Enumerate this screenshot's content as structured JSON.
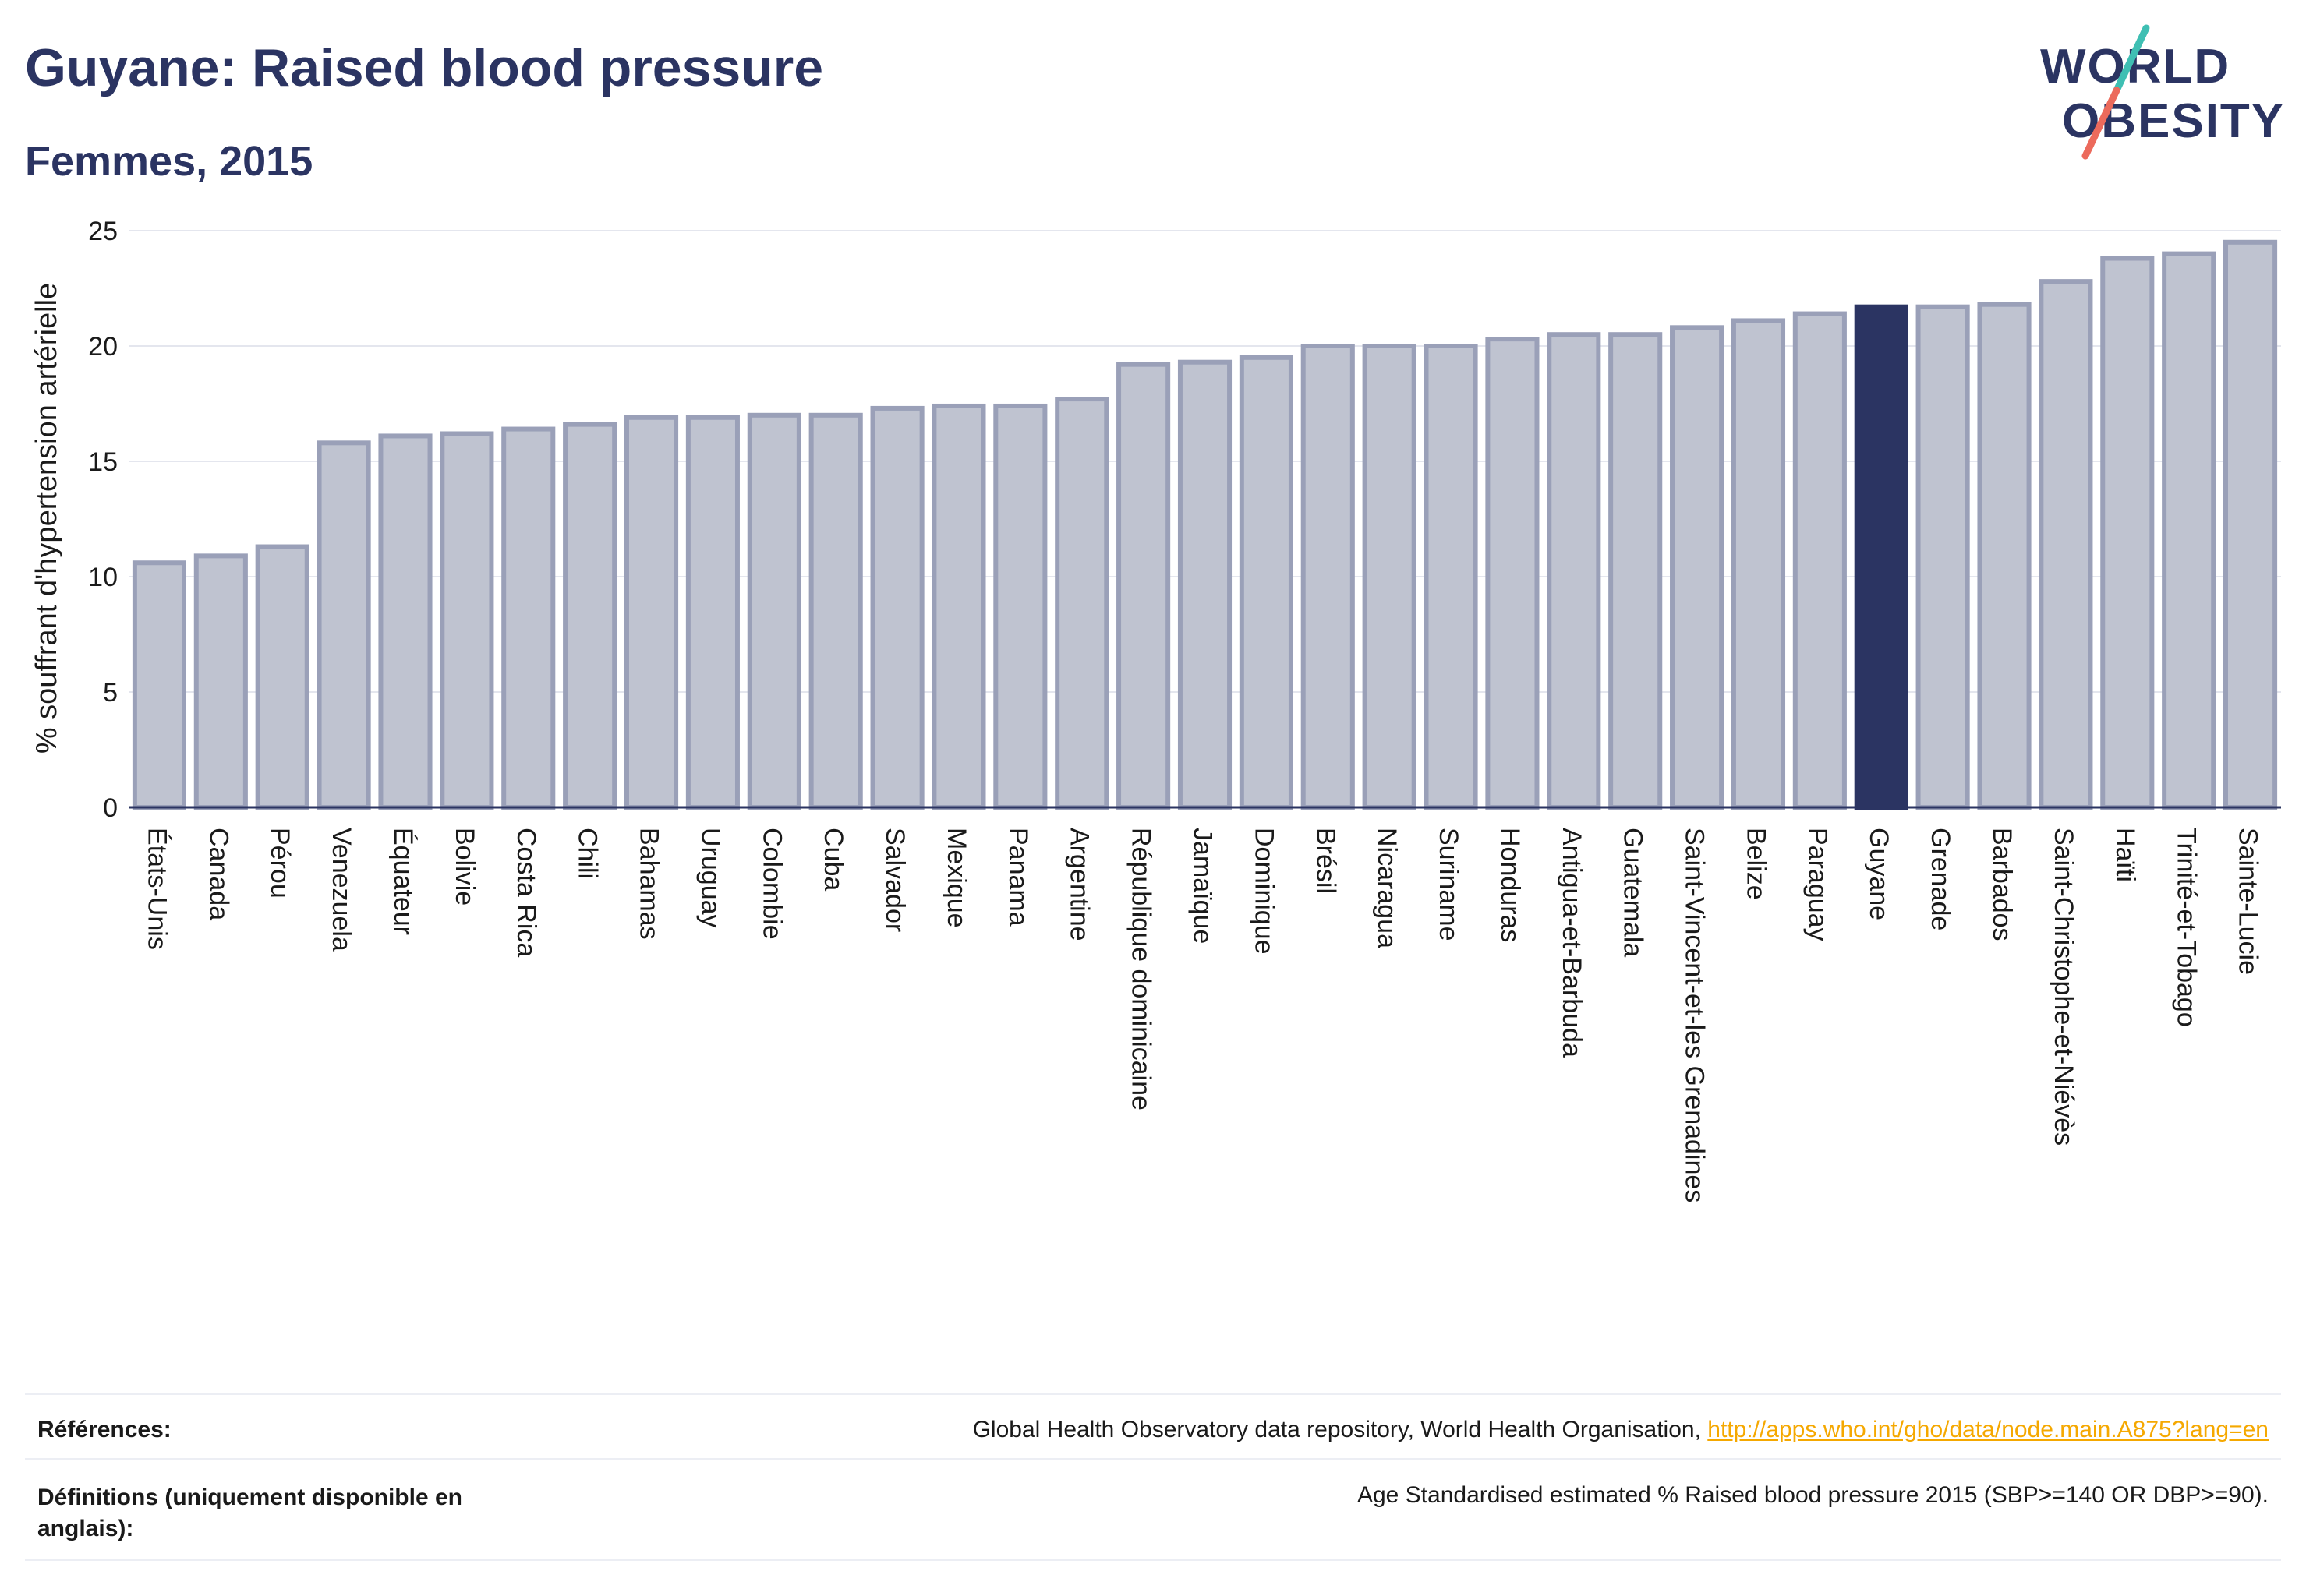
{
  "header": {
    "title": "Guyane: Raised blood pressure",
    "subtitle": "Femmes, 2015",
    "logo_text_line1": "WORLD",
    "logo_text_line2": "OBESITY"
  },
  "colors": {
    "highlight": "#2b3462",
    "bar_fill": "#bfc3d0",
    "bar_stroke": "#9aa0b8",
    "title": "#2b3462",
    "link": "#f5a800",
    "logo_teal": "#3fbfb3",
    "logo_coral": "#ec6a5c"
  },
  "chart_data": {
    "type": "bar",
    "ylabel": "% souffrant d'hypertension artérielle",
    "xlabel": "",
    "ylim": [
      0,
      25
    ],
    "yticks": [
      0,
      5,
      10,
      15,
      20,
      25
    ],
    "grid": true,
    "highlight_category": "Guyane",
    "categories": [
      "États-Unis",
      "Canada",
      "Pérou",
      "Venezuela",
      "Équateur",
      "Bolivie",
      "Costa Rica",
      "Chili",
      "Bahamas",
      "Uruguay",
      "Colombie",
      "Cuba",
      "Salvador",
      "Mexique",
      "Panama",
      "Argentine",
      "République dominicaine",
      "Jamaïque",
      "Dominique",
      "Brésil",
      "Nicaragua",
      "Suriname",
      "Honduras",
      "Antigua-et-Barbuda",
      "Guatemala",
      "Saint-Vincent-et-les Grenadines",
      "Belize",
      "Paraguay",
      "Guyane",
      "Grenade",
      "Barbados",
      "Saint-Christophe-et-Niévès",
      "Haïti",
      "Trinité-et-Tobago",
      "Sainte-Lucie"
    ],
    "values": [
      10.6,
      10.9,
      11.3,
      15.8,
      16.1,
      16.2,
      16.4,
      16.6,
      16.9,
      16.9,
      17.0,
      17.0,
      17.3,
      17.4,
      17.4,
      17.7,
      19.2,
      19.3,
      19.5,
      20.0,
      20.0,
      20.0,
      20.3,
      20.5,
      20.5,
      20.8,
      21.1,
      21.4,
      21.7,
      21.7,
      21.8,
      22.8,
      23.8,
      24.0,
      24.5
    ]
  },
  "references": {
    "sources_label": "Références:",
    "sources_text": "Global Health Observatory data repository, World Health Organisation, ",
    "sources_link": "http://apps.who.int/gho/data/node.main.A875?lang=en",
    "definitions_label": "Définitions (uniquement disponible en anglais):",
    "definitions_text": "Age Standardised estimated % Raised blood pressure 2015 (SBP>=140 OR DBP>=90)."
  }
}
